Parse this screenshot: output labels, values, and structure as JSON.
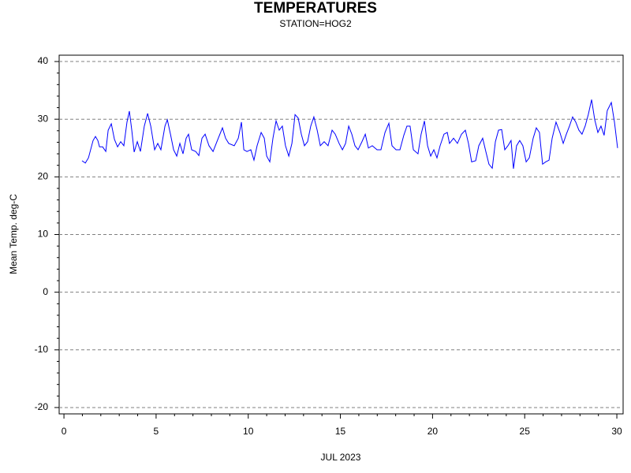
{
  "chart_data": {
    "type": "line",
    "title": "TEMPERATURES",
    "subtitle": "STATION=HOG2",
    "x_label": "JUL 2023",
    "y_label": "Mean Temp. deg-C",
    "xlim": [
      -0.26,
      30.34
    ],
    "ylim": [
      -21.1,
      41.1
    ],
    "xticks": [
      0,
      5,
      10,
      15,
      20,
      25,
      30
    ],
    "yticks": [
      -20,
      -10,
      0,
      10,
      20,
      30,
      40
    ],
    "xminorticks": [
      1,
      2,
      3,
      4,
      6,
      7,
      8,
      9,
      11,
      12,
      13,
      14,
      16,
      17,
      18,
      19,
      21,
      22,
      23,
      24,
      26,
      27,
      28,
      29
    ],
    "yminorticks": [
      -18,
      -16,
      -14,
      -12,
      -8,
      -6,
      -4,
      -2,
      2,
      4,
      6,
      8,
      12,
      14,
      16,
      18,
      22,
      24,
      26,
      28,
      32,
      34,
      36,
      38
    ],
    "grid": true,
    "series": [
      {
        "name": "Mean Temp.",
        "color": "#0000ff",
        "x": [
          0.98,
          1.16,
          1.33,
          1.58,
          1.71,
          1.84,
          1.93,
          2.1,
          2.27,
          2.4,
          2.57,
          2.74,
          2.91,
          3.08,
          3.25,
          3.42,
          3.55,
          3.68,
          3.81,
          3.98,
          4.15,
          4.36,
          4.54,
          4.71,
          4.92,
          5.09,
          5.26,
          5.48,
          5.61,
          5.78,
          5.95,
          6.12,
          6.29,
          6.46,
          6.63,
          6.76,
          6.93,
          7.15,
          7.32,
          7.49,
          7.66,
          7.87,
          8.09,
          8.3,
          8.6,
          8.77,
          8.94,
          9.24,
          9.46,
          9.63,
          9.76,
          9.93,
          10.14,
          10.31,
          10.48,
          10.7,
          10.87,
          11.0,
          11.17,
          11.34,
          11.51,
          11.68,
          11.85,
          12.02,
          12.2,
          12.37,
          12.54,
          12.71,
          12.88,
          13.05,
          13.22,
          13.39,
          13.56,
          13.74,
          13.91,
          14.12,
          14.33,
          14.55,
          14.72,
          14.93,
          15.11,
          15.28,
          15.45,
          15.62,
          15.79,
          15.96,
          16.17,
          16.35,
          16.52,
          16.73,
          16.99,
          17.2,
          17.42,
          17.63,
          17.8,
          18.02,
          18.23,
          18.44,
          18.61,
          18.78,
          18.96,
          19.21,
          19.38,
          19.56,
          19.73,
          19.9,
          20.07,
          20.24,
          20.41,
          20.62,
          20.8,
          20.92,
          21.14,
          21.35,
          21.57,
          21.78,
          21.95,
          22.12,
          22.34,
          22.51,
          22.72,
          22.89,
          23.06,
          23.24,
          23.41,
          23.58,
          23.75,
          23.92,
          24.09,
          24.26,
          24.39,
          24.56,
          24.73,
          24.9,
          25.08,
          25.25,
          25.46,
          25.63,
          25.8,
          25.97,
          26.14,
          26.32,
          26.49,
          26.7,
          26.91,
          27.09,
          27.26,
          27.43,
          27.6,
          27.77,
          27.94,
          28.11,
          28.28,
          28.45,
          28.63,
          28.8,
          28.97,
          29.14,
          29.31,
          29.48,
          29.7,
          29.87,
          30.04
        ],
        "values": [
          22.8,
          22.4,
          23.3,
          26.3,
          27.0,
          26.3,
          25.2,
          25.2,
          24.4,
          28.1,
          29.2,
          26.5,
          25.2,
          26.1,
          25.4,
          29.5,
          31.4,
          28.1,
          24.3,
          26.1,
          24.4,
          28.8,
          31.0,
          28.8,
          24.7,
          25.8,
          24.7,
          28.8,
          29.9,
          27.4,
          24.7,
          23.6,
          25.8,
          24.0,
          26.7,
          27.4,
          24.7,
          24.4,
          23.7,
          26.7,
          27.4,
          25.4,
          24.4,
          26.1,
          28.5,
          26.7,
          25.8,
          25.4,
          26.7,
          29.5,
          24.7,
          24.4,
          24.7,
          22.9,
          25.4,
          27.7,
          26.7,
          23.6,
          22.6,
          26.7,
          29.7,
          28.1,
          28.8,
          25.4,
          23.6,
          25.8,
          30.8,
          30.2,
          27.4,
          25.4,
          26.1,
          28.8,
          30.4,
          28.1,
          25.4,
          26.1,
          25.4,
          28.1,
          27.4,
          25.8,
          24.7,
          25.8,
          28.8,
          27.4,
          25.4,
          24.7,
          26.1,
          27.4,
          25.0,
          25.4,
          24.7,
          24.7,
          27.7,
          29.3,
          25.4,
          24.7,
          24.7,
          27.2,
          28.8,
          28.8,
          24.7,
          24.0,
          27.4,
          29.7,
          25.4,
          23.6,
          24.7,
          23.3,
          25.4,
          27.4,
          27.7,
          25.8,
          26.7,
          25.8,
          27.4,
          28.1,
          25.8,
          22.6,
          22.8,
          25.4,
          26.7,
          24.4,
          22.2,
          21.5,
          26.1,
          28.1,
          28.2,
          24.7,
          25.4,
          26.3,
          21.4,
          25.4,
          26.3,
          25.4,
          22.6,
          23.3,
          26.7,
          28.5,
          27.7,
          22.2,
          22.6,
          22.9,
          26.7,
          29.5,
          27.7,
          25.8,
          27.4,
          28.8,
          30.4,
          29.5,
          28.1,
          27.4,
          28.8,
          30.8,
          33.4,
          29.9,
          27.7,
          28.8,
          27.2,
          31.5,
          32.9,
          29.5,
          25.0
        ]
      }
    ]
  }
}
